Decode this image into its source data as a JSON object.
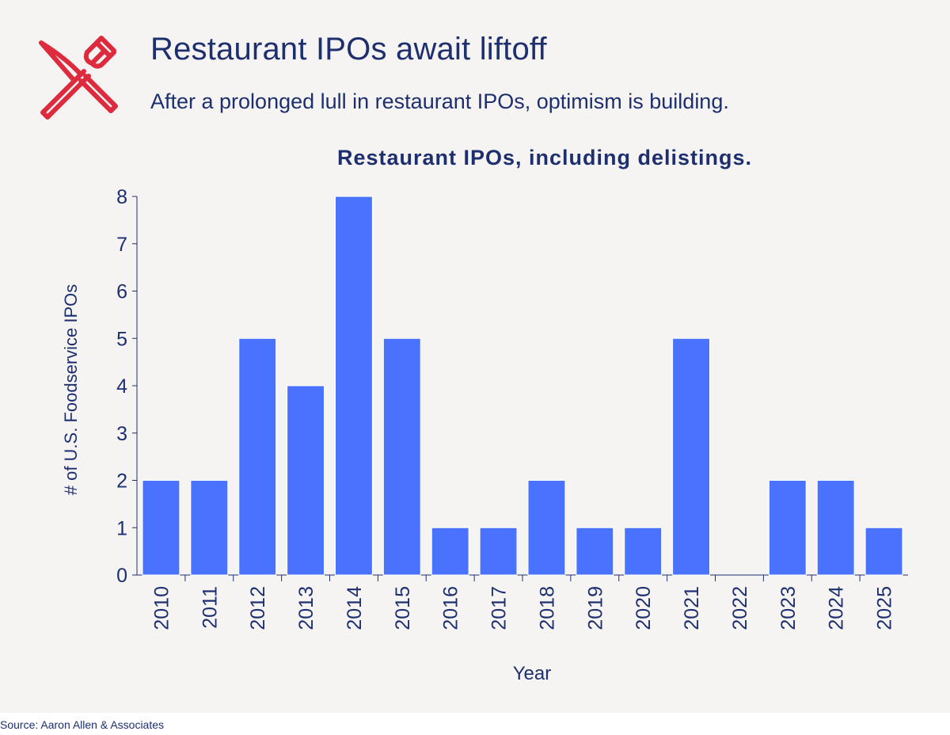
{
  "header": {
    "title": "Restaurant IPOs await liftoff",
    "subtitle": "After a prolonged lull in restaurant IPOs, optimism is building.",
    "logo_icon": "knife-fork-icon"
  },
  "footer": {
    "source": "Source: Aaron Allen & Associates"
  },
  "colors": {
    "bar": "#4a73fd",
    "text": "#1d2f6f",
    "accent": "#dd2a3d",
    "background": "#f6f4f3"
  },
  "chart_data": {
    "type": "bar",
    "title": "Restaurant IPOs, including delistings.",
    "xlabel": "Year",
    "ylabel": "# of U.S. Foodservice IPOs",
    "categories": [
      "2010",
      "2011",
      "2012",
      "2013",
      "2014",
      "2015",
      "2016",
      "2017",
      "2018",
      "2019",
      "2020",
      "2021",
      "2022",
      "2023",
      "2024",
      "2025"
    ],
    "values": [
      2,
      2,
      5,
      4,
      8,
      5,
      1,
      1,
      2,
      1,
      1,
      5,
      0,
      2,
      2,
      1
    ],
    "ylim": [
      0,
      8
    ],
    "yticks": [
      0,
      1,
      2,
      3,
      4,
      5,
      6,
      7,
      8
    ],
    "grid": false,
    "legend": "none"
  }
}
